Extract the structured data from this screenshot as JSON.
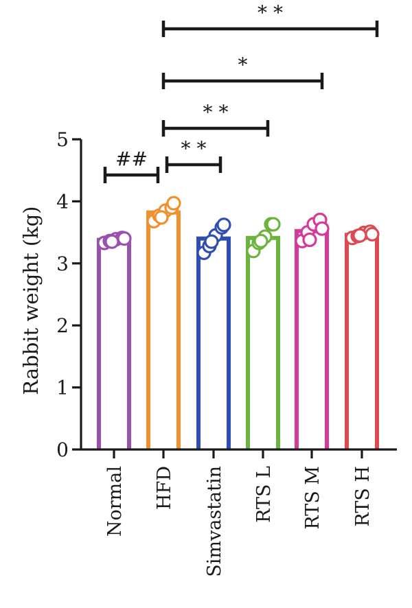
{
  "chart_data": {
    "type": "bar",
    "title": "",
    "xlabel": "",
    "ylabel": "Rabbit weight (kg)",
    "ylim": [
      0,
      5
    ],
    "yticks": [
      "0",
      "1",
      "2",
      "3",
      "4",
      "5"
    ],
    "grid": false,
    "legend": "none",
    "categories": [
      "Normal",
      "HFD",
      "Simvastatin",
      "RTS L",
      "RTS M",
      "RTS H"
    ],
    "values": [
      3.38,
      3.82,
      3.4,
      3.41,
      3.52,
      3.46
    ],
    "colors": [
      "#9b4fb1",
      "#f0902e",
      "#2f4fb0",
      "#6cb33f",
      "#d63a98",
      "#dc4b52"
    ],
    "points": [
      [
        3.33,
        3.36,
        3.39,
        3.41,
        3.35,
        3.4
      ],
      [
        3.68,
        3.77,
        3.85,
        3.9,
        3.74,
        3.97
      ],
      [
        3.17,
        3.28,
        3.45,
        3.58,
        3.35,
        3.62
      ],
      [
        3.2,
        3.33,
        3.43,
        3.63,
        3.36,
        3.63
      ],
      [
        3.36,
        3.5,
        3.63,
        3.7,
        3.38,
        3.56
      ],
      [
        3.41,
        3.44,
        3.49,
        3.51,
        3.45,
        3.47
      ]
    ],
    "significance": [
      {
        "from": 0,
        "to": 1,
        "label": "##"
      },
      {
        "from": 1,
        "to": 2,
        "label": "* *"
      },
      {
        "from": 1,
        "to": 3,
        "label": "* *"
      },
      {
        "from": 1,
        "to": 4,
        "label": "*"
      },
      {
        "from": 1,
        "to": 5,
        "label": "* *"
      }
    ]
  }
}
